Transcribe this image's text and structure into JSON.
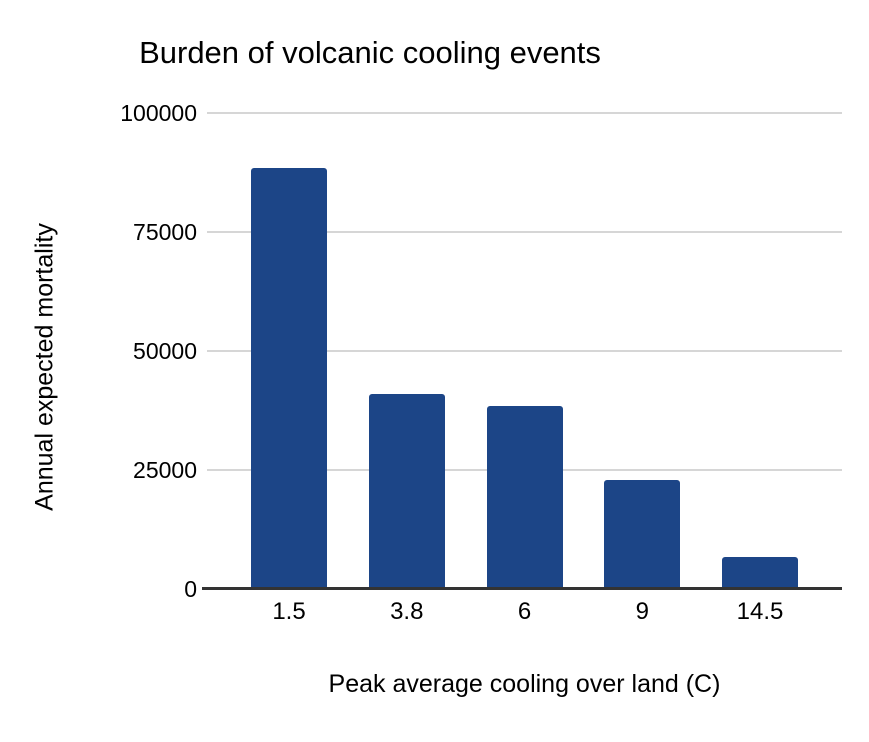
{
  "chart_data": {
    "type": "bar",
    "title": "Burden of volcanic cooling events",
    "xlabel": "Peak average cooling over land (C)",
    "ylabel": "Annual expected mortality",
    "categories": [
      "1.5",
      "3.8",
      "6",
      "9",
      "14.5"
    ],
    "values": [
      88500,
      41000,
      38500,
      23000,
      6800
    ],
    "ylim": [
      0,
      100000
    ],
    "yticks": [
      0,
      25000,
      50000,
      75000,
      100000
    ],
    "ytick_labels": [
      "0",
      "25000",
      "50000",
      "75000",
      "100000"
    ],
    "grid": true,
    "legend": "none",
    "bar_color": "#1c4587",
    "gridline_color": "#d6d6d6",
    "axis_color": "#333333",
    "text_color": "#000000",
    "background_color": "#ffffff"
  }
}
